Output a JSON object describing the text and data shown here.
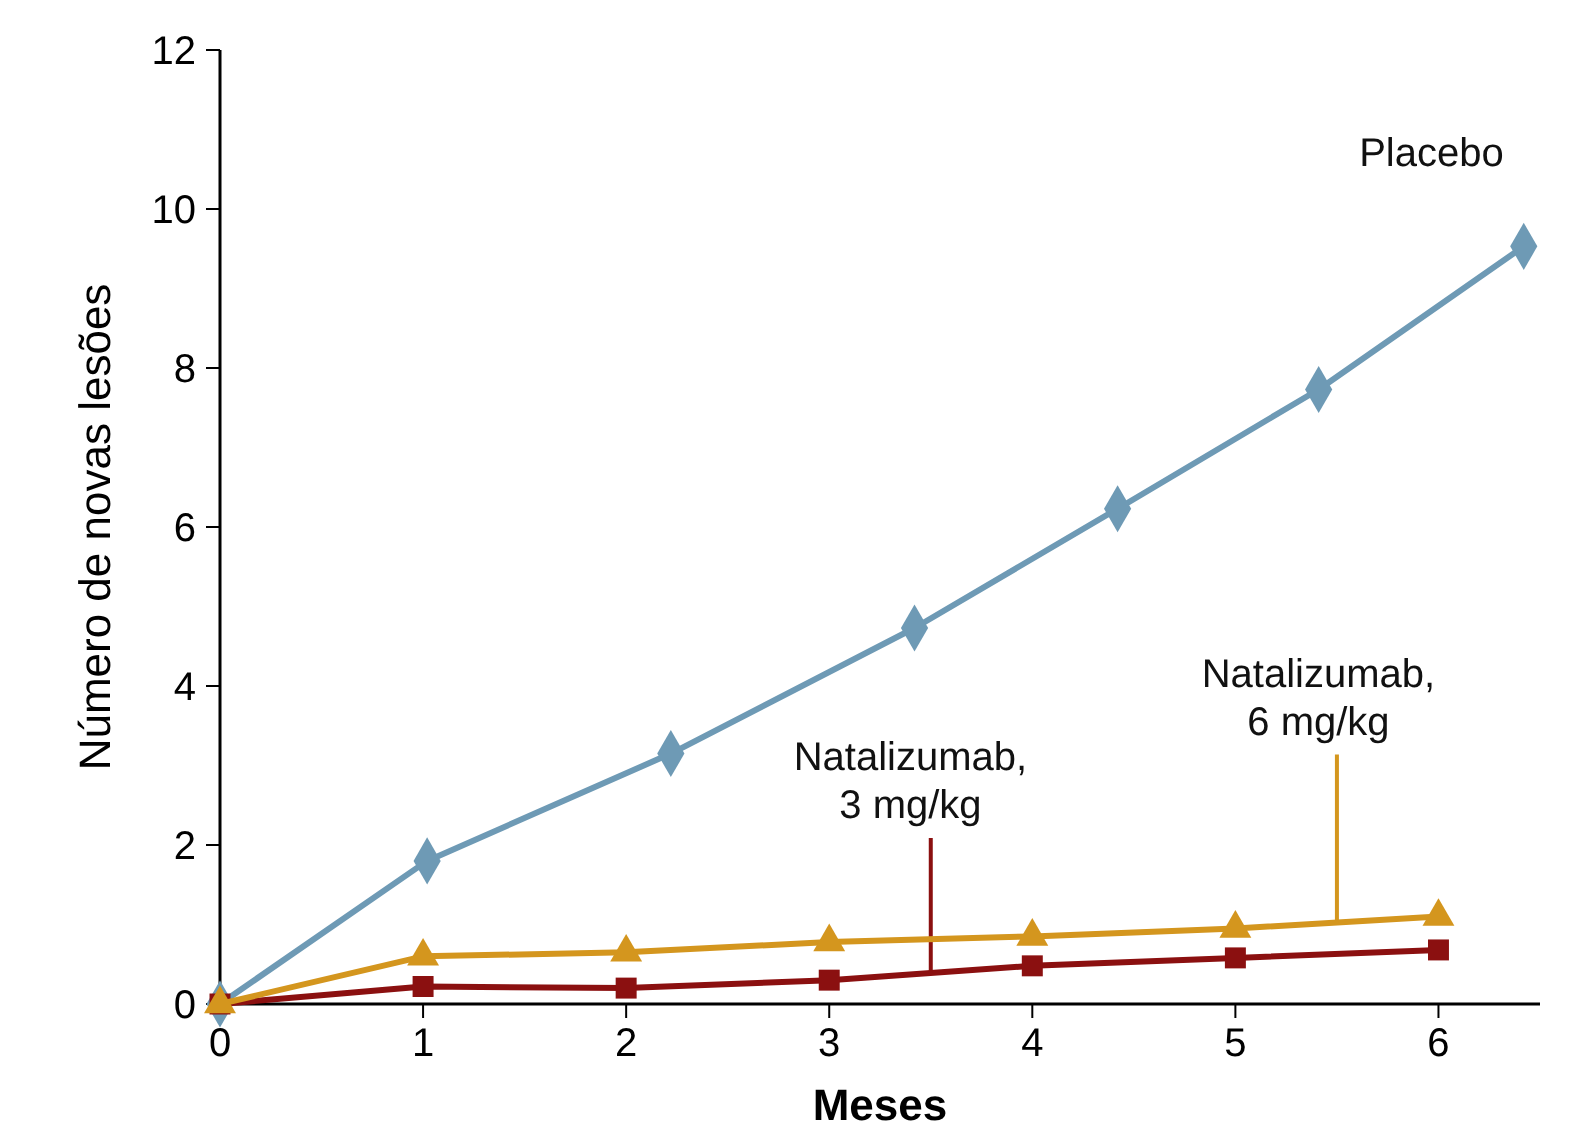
{
  "chart_data": {
    "type": "line",
    "xlabel": "Meses",
    "ylabel": "Número de novas lesões",
    "xlim": [
      0,
      6.5
    ],
    "xticks": [
      0,
      1,
      2,
      3,
      4,
      5,
      6
    ],
    "ylim": [
      0,
      12
    ],
    "yticks": [
      0,
      2,
      4,
      6,
      8,
      10,
      12
    ],
    "grid": false,
    "line_style": "solid",
    "series": [
      {
        "name": "Placebo",
        "color": "#6e9ab5",
        "marker": "diamond",
        "x": [
          0,
          1.02,
          2.22,
          3.42,
          4.42,
          5.41,
          6.42
        ],
        "values": [
          0,
          1.8,
          3.15,
          4.73,
          6.23,
          7.73,
          9.53
        ]
      },
      {
        "name": "Natalizumab, 3 mg/kg",
        "color": "#8b1010",
        "marker": "square",
        "x": [
          0,
          1,
          2,
          3,
          4,
          5,
          6
        ],
        "values": [
          0,
          0.22,
          0.2,
          0.3,
          0.48,
          0.58,
          0.68
        ]
      },
      {
        "name": "Natalizumab, 6 mg/kg",
        "color": "#d4961e",
        "marker": "triangle",
        "x": [
          0,
          1,
          2,
          3,
          4,
          5,
          6
        ],
        "values": [
          0,
          0.6,
          0.65,
          0.78,
          0.85,
          0.95,
          1.1
        ]
      }
    ]
  }
}
